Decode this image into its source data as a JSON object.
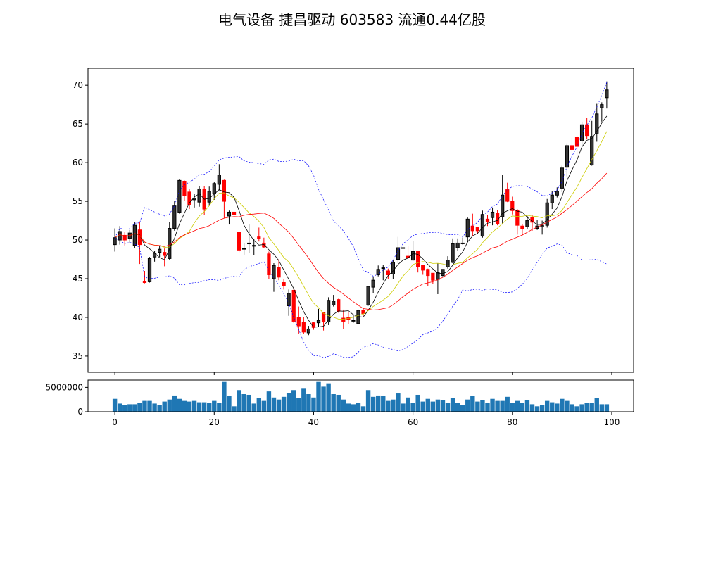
{
  "chart_data": {
    "type": "candlestick",
    "title": "电气设备 捷昌驱动 603583 流通0.44亿股",
    "x_ticks": [
      0,
      20,
      40,
      60,
      80,
      100
    ],
    "y_ticks": [
      35,
      40,
      45,
      50,
      55,
      60,
      65,
      70
    ],
    "volume_ticks": [
      0,
      5000000
    ],
    "volume_tick_labels": [
      "0",
      "5000000"
    ],
    "xlim": [
      -5.4,
      104.4
    ],
    "ylim": [
      32.9,
      72.2
    ],
    "volume_ylim": [
      0,
      6500000
    ],
    "grid": false,
    "colors": {
      "up": "#000000",
      "down": "#ff0000",
      "ma5": "#000000",
      "ma10": "#cccc00",
      "ma20": "#ff0000",
      "boll": "#0000ff",
      "volume": "#1f77b4"
    },
    "indicators": {
      "ma_periods": [
        5,
        10,
        20
      ],
      "bollinger": {
        "period": 20,
        "k": 2
      }
    },
    "ohlc": [
      [
        49.4,
        51.5,
        48.5,
        50.3
      ],
      [
        50.0,
        51.8,
        49.4,
        51.1
      ],
      [
        50.6,
        51.0,
        49.3,
        50.0
      ],
      [
        50.2,
        51.3,
        49.6,
        50.9
      ],
      [
        49.3,
        52.3,
        49.0,
        51.9
      ],
      [
        51.3,
        52.3,
        46.9,
        49.4
      ],
      [
        44.6,
        46.0,
        44.4,
        44.5
      ],
      [
        44.6,
        47.8,
        44.5,
        47.6
      ],
      [
        47.8,
        48.6,
        47.2,
        48.3
      ],
      [
        48.4,
        49.2,
        47.8,
        48.8
      ],
      [
        48.4,
        48.9,
        46.6,
        48.0
      ],
      [
        47.6,
        52.3,
        47.4,
        51.5
      ],
      [
        51.5,
        55.0,
        51.2,
        54.4
      ],
      [
        53.6,
        57.9,
        53.4,
        57.7
      ],
      [
        57.6,
        57.7,
        55.1,
        55.7
      ],
      [
        56.2,
        56.6,
        54.0,
        54.6
      ],
      [
        55.2,
        56.0,
        54.2,
        55.4
      ],
      [
        54.9,
        57.0,
        54.3,
        56.6
      ],
      [
        56.6,
        57.0,
        53.2,
        54.0
      ],
      [
        54.9,
        56.9,
        54.4,
        56.3
      ],
      [
        56.0,
        57.5,
        55.2,
        57.3
      ],
      [
        57.2,
        59.8,
        56.4,
        58.4
      ],
      [
        57.7,
        57.8,
        52.8,
        55.0
      ],
      [
        53.1,
        53.8,
        52.0,
        53.6
      ],
      [
        53.6,
        53.8,
        52.8,
        53.3
      ],
      [
        51.0,
        51.1,
        48.4,
        48.7
      ],
      [
        48.9,
        49.6,
        48.1,
        48.9
      ],
      [
        49.5,
        52.0,
        48.3,
        49.6
      ],
      [
        49.2,
        50.1,
        48.0,
        49.3
      ],
      [
        50.4,
        51.6,
        49.8,
        50.2
      ],
      [
        49.6,
        50.3,
        49.0,
        49.1
      ],
      [
        48.2,
        48.5,
        45.0,
        45.5
      ],
      [
        45.0,
        47.0,
        43.3,
        46.7
      ],
      [
        46.5,
        47.5,
        44.8,
        45.2
      ],
      [
        44.5,
        45.0,
        43.6,
        44.1
      ],
      [
        41.5,
        43.6,
        40.2,
        43.1
      ],
      [
        43.5,
        43.6,
        39.3,
        39.5
      ],
      [
        40.0,
        41.4,
        37.9,
        38.9
      ],
      [
        39.4,
        40.0,
        37.9,
        38.1
      ],
      [
        38.0,
        38.9,
        37.7,
        38.5
      ],
      [
        39.3,
        39.4,
        38.4,
        38.7
      ],
      [
        39.3,
        41.1,
        38.8,
        39.6
      ],
      [
        40.6,
        40.6,
        38.3,
        39.4
      ],
      [
        39.4,
        42.6,
        39.0,
        42.2
      ],
      [
        41.6,
        42.9,
        41.4,
        42.1
      ],
      [
        42.3,
        42.4,
        40.6,
        40.8
      ],
      [
        39.9,
        41.0,
        38.5,
        39.5
      ],
      [
        40.0,
        40.7,
        39.1,
        39.7
      ],
      [
        39.6,
        40.4,
        39.3,
        39.6
      ],
      [
        39.2,
        41.0,
        39.1,
        40.9
      ],
      [
        40.9,
        41.2,
        40.2,
        40.5
      ],
      [
        41.6,
        44.0,
        41.5,
        44.0
      ],
      [
        43.9,
        45.3,
        43.1,
        44.8
      ],
      [
        45.5,
        46.7,
        45.3,
        46.2
      ],
      [
        46.4,
        46.8,
        44.8,
        46.4
      ],
      [
        46.0,
        46.3,
        45.0,
        45.5
      ],
      [
        45.6,
        47.4,
        45.0,
        47.1
      ],
      [
        47.5,
        50.4,
        47.0,
        49.0
      ],
      [
        49.0,
        49.7,
        48.3,
        49.0
      ],
      [
        47.9,
        49.2,
        47.4,
        47.7
      ],
      [
        47.4,
        49.9,
        47.3,
        48.5
      ],
      [
        48.5,
        48.5,
        45.8,
        46.5
      ],
      [
        46.7,
        46.8,
        45.5,
        46.1
      ],
      [
        46.2,
        46.3,
        44.0,
        45.4
      ],
      [
        45.7,
        45.7,
        44.3,
        44.8
      ],
      [
        44.9,
        47.0,
        43.0,
        45.8
      ],
      [
        45.4,
        46.2,
        45.3,
        46.2
      ],
      [
        46.5,
        47.9,
        46.3,
        47.4
      ],
      [
        47.1,
        50.2,
        47.0,
        49.5
      ],
      [
        49.0,
        50.2,
        48.6,
        49.6
      ],
      [
        49.6,
        50.3,
        49.4,
        49.6
      ],
      [
        50.4,
        52.9,
        49.7,
        52.7
      ],
      [
        51.8,
        53.4,
        50.5,
        51.2
      ],
      [
        51.6,
        51.7,
        50.8,
        51.2
      ],
      [
        50.5,
        53.8,
        50.3,
        53.3
      ],
      [
        52.7,
        53.2,
        51.8,
        52.4
      ],
      [
        52.9,
        54.2,
        51.9,
        53.6
      ],
      [
        53.5,
        53.9,
        51.9,
        52.1
      ],
      [
        53.0,
        58.4,
        52.0,
        55.8
      ],
      [
        56.5,
        57.4,
        54.9,
        55.0
      ],
      [
        55.0,
        55.6,
        53.3,
        53.8
      ],
      [
        53.8,
        54.0,
        50.7,
        51.9
      ],
      [
        51.8,
        52.1,
        50.6,
        51.5
      ],
      [
        51.7,
        53.1,
        51.4,
        52.5
      ],
      [
        52.9,
        53.2,
        51.2,
        52.3
      ],
      [
        51.5,
        52.6,
        51.3,
        51.8
      ],
      [
        51.7,
        52.5,
        50.7,
        51.9
      ],
      [
        51.9,
        55.3,
        51.6,
        54.8
      ],
      [
        54.8,
        56.3,
        54.0,
        55.8
      ],
      [
        55.8,
        56.8,
        55.5,
        56.3
      ],
      [
        56.7,
        59.6,
        56.2,
        59.3
      ],
      [
        59.4,
        62.5,
        58.2,
        62.2
      ],
      [
        62.2,
        63.2,
        61.2,
        61.7
      ],
      [
        63.3,
        63.5,
        60.2,
        62.1
      ],
      [
        62.8,
        65.3,
        62.2,
        64.9
      ],
      [
        64.9,
        65.8,
        63.0,
        63.5
      ],
      [
        59.7,
        65.4,
        59.6,
        63.4
      ],
      [
        63.8,
        67.6,
        62.7,
        66.3
      ],
      [
        67.1,
        67.8,
        65.3,
        67.5
      ],
      [
        68.4,
        70.5,
        67.0,
        69.4
      ]
    ],
    "volume": [
      2640000,
      1670000,
      1390000,
      1530000,
      1530000,
      1800000,
      2220000,
      2220000,
      1670000,
      1390000,
      2080000,
      2500000,
      3330000,
      2640000,
      2220000,
      2080000,
      2220000,
      1940000,
      1940000,
      1800000,
      2220000,
      1800000,
      6110000,
      3190000,
      1110000,
      4440000,
      3610000,
      3470000,
      1670000,
      2780000,
      2220000,
      4170000,
      2920000,
      2500000,
      3060000,
      3890000,
      4440000,
      2780000,
      4720000,
      3610000,
      2920000,
      6110000,
      5140000,
      5830000,
      3610000,
      3470000,
      2500000,
      1670000,
      1530000,
      1800000,
      1110000,
      4440000,
      3060000,
      3330000,
      3190000,
      2220000,
      2500000,
      3750000,
      1670000,
      2920000,
      1800000,
      3470000,
      2080000,
      2640000,
      2080000,
      2500000,
      2360000,
      1800000,
      2780000,
      1800000,
      1390000,
      2500000,
      3190000,
      2080000,
      2360000,
      1800000,
      2640000,
      2220000,
      2220000,
      3060000,
      1800000,
      2220000,
      1800000,
      2360000,
      1530000,
      1110000,
      1390000,
      2220000,
      1940000,
      1670000,
      2640000,
      2220000,
      1530000,
      1110000,
      1530000,
      1800000,
      1800000,
      2780000,
      1530000,
      1530000
    ]
  }
}
